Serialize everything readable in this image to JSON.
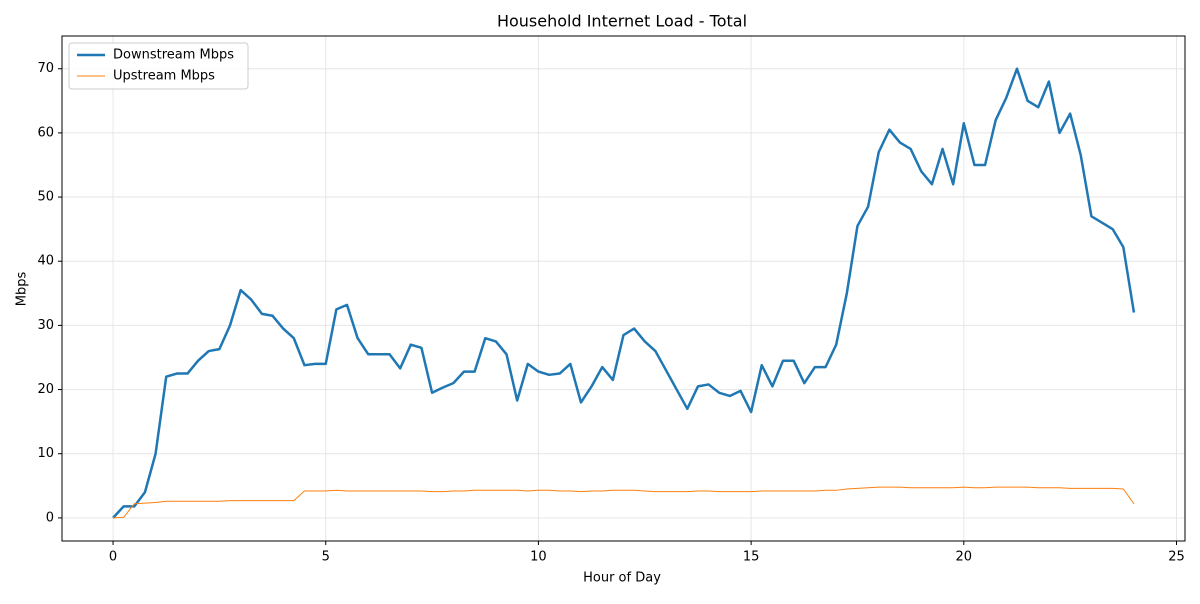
{
  "chart_data": {
    "type": "line",
    "title": "Household Internet Load - Total",
    "xlabel": "Hour of Day",
    "ylabel": "Mbps",
    "x": [
      0,
      0.25,
      0.5,
      0.75,
      1,
      1.25,
      1.5,
      1.75,
      2,
      2.25,
      2.5,
      2.75,
      3,
      3.25,
      3.5,
      3.75,
      4,
      4.25,
      4.5,
      4.75,
      5,
      5.25,
      5.5,
      5.75,
      6,
      6.25,
      6.5,
      6.75,
      7,
      7.25,
      7.5,
      7.75,
      8,
      8.25,
      8.5,
      8.75,
      9,
      9.25,
      9.5,
      9.75,
      10,
      10.25,
      10.5,
      10.75,
      11,
      11.25,
      11.5,
      11.75,
      12,
      12.25,
      12.5,
      12.75,
      13,
      13.25,
      13.5,
      13.75,
      14,
      14.25,
      14.5,
      14.75,
      15,
      15.25,
      15.5,
      15.75,
      16,
      16.25,
      16.5,
      16.75,
      17,
      17.25,
      17.5,
      17.75,
      18,
      18.25,
      18.5,
      18.75,
      19,
      19.25,
      19.5,
      19.75,
      20,
      20.25,
      20.5,
      20.75,
      21,
      21.25,
      21.5,
      21.75,
      22,
      22.25,
      22.5,
      22.75,
      23,
      23.25,
      23.5,
      23.75,
      24
    ],
    "series": [
      {
        "name": "Downstream Mbps",
        "color": "#1f77b4",
        "width": 2.5,
        "values": [
          0,
          1.8,
          1.8,
          4.0,
          10,
          22,
          22.5,
          22.5,
          24.5,
          26,
          26.3,
          30,
          35.5,
          34,
          31.8,
          31.5,
          29.5,
          28,
          23.8,
          24,
          24,
          32.5,
          33.2,
          28,
          25.5,
          25.5,
          25.5,
          23.3,
          27,
          26.5,
          19.5,
          20.3,
          21,
          22.8,
          22.8,
          28,
          27.5,
          25.5,
          18.3,
          24,
          22.8,
          22.3,
          22.5,
          24,
          18,
          20.5,
          23.5,
          21.5,
          28.5,
          29.5,
          27.5,
          26,
          23,
          20,
          17,
          20.5,
          20.8,
          19.5,
          19,
          19.8,
          16.5,
          23.8,
          20.5,
          24.5,
          24.5,
          21,
          23.5,
          23.5,
          27,
          35,
          45.5,
          48.5,
          57,
          60.5,
          58.5,
          57.5,
          54,
          52,
          57.5,
          52,
          61.5,
          55,
          55,
          62,
          65.5,
          70,
          65,
          64,
          68,
          60,
          63,
          56.5,
          47,
          46,
          45,
          42.2,
          32
        ]
      },
      {
        "name": "Upstream Mbps",
        "color": "#ff7f0e",
        "width": 1,
        "values": [
          0,
          0.1,
          2.2,
          2.3,
          2.4,
          2.6,
          2.6,
          2.6,
          2.6,
          2.6,
          2.6,
          2.7,
          2.7,
          2.7,
          2.7,
          2.7,
          2.7,
          2.7,
          4.2,
          4.2,
          4.2,
          4.3,
          4.2,
          4.2,
          4.2,
          4.2,
          4.2,
          4.2,
          4.2,
          4.2,
          4.1,
          4.1,
          4.2,
          4.2,
          4.3,
          4.3,
          4.3,
          4.3,
          4.3,
          4.2,
          4.3,
          4.3,
          4.2,
          4.2,
          4.1,
          4.2,
          4.2,
          4.3,
          4.3,
          4.3,
          4.2,
          4.1,
          4.1,
          4.1,
          4.1,
          4.2,
          4.2,
          4.1,
          4.1,
          4.1,
          4.1,
          4.2,
          4.2,
          4.2,
          4.2,
          4.2,
          4.2,
          4.3,
          4.3,
          4.5,
          4.6,
          4.7,
          4.8,
          4.8,
          4.8,
          4.7,
          4.7,
          4.7,
          4.7,
          4.7,
          4.8,
          4.7,
          4.7,
          4.8,
          4.8,
          4.8,
          4.8,
          4.7,
          4.7,
          4.7,
          4.6,
          4.6,
          4.6,
          4.6,
          4.6,
          4.5,
          2.2
        ]
      }
    ],
    "xlim": [
      -1.2,
      25.2
    ],
    "ylim": [
      -3.6,
      75.1
    ],
    "xticks": [
      0,
      5,
      10,
      15,
      20,
      25
    ],
    "yticks": [
      0,
      10,
      20,
      30,
      40,
      50,
      60,
      70
    ],
    "grid": true,
    "legend": "upper left"
  }
}
